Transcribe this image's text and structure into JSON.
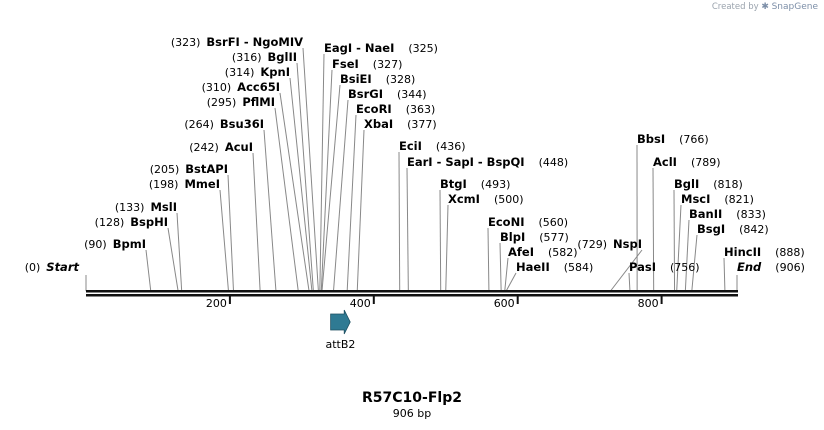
{
  "credit": {
    "prefix": "Created by",
    "brand": "SnapGene"
  },
  "construct": {
    "name": "R57C10-Flp2",
    "length_label": "906 bp",
    "length": 906
  },
  "ends": {
    "start": {
      "name": "Start",
      "pos": "(0)"
    },
    "end": {
      "name": "End",
      "pos": "(906)"
    }
  },
  "ticks": [
    "200",
    "400",
    "600",
    "800"
  ],
  "tick_values": [
    200,
    400,
    600,
    800
  ],
  "feature": {
    "name": "attB2",
    "start": 340,
    "end": 370,
    "color": "#2f7a93"
  },
  "sites": [
    {
      "name": "BsrFI - NgoMIV",
      "pos": "(323)",
      "bp": 323
    },
    {
      "name": "BglII",
      "pos": "(316)",
      "bp": 316
    },
    {
      "name": "KpnI",
      "pos": "(314)",
      "bp": 314
    },
    {
      "name": "Acc65I",
      "pos": "(310)",
      "bp": 310
    },
    {
      "name": "PflMI",
      "pos": "(295)",
      "bp": 295
    },
    {
      "name": "Bsu36I",
      "pos": "(264)",
      "bp": 264
    },
    {
      "name": "AcuI",
      "pos": "(242)",
      "bp": 242
    },
    {
      "name": "BstAPI",
      "pos": "(205)",
      "bp": 205
    },
    {
      "name": "MmeI",
      "pos": "(198)",
      "bp": 198
    },
    {
      "name": "MslI",
      "pos": "(133)",
      "bp": 133
    },
    {
      "name": "BspHI",
      "pos": "(128)",
      "bp": 128
    },
    {
      "name": "BpmI",
      "pos": "(90)",
      "bp": 90
    },
    {
      "name": "EagI - NaeI",
      "pos": "(325)",
      "bp": 325
    },
    {
      "name": "FseI",
      "pos": "(327)",
      "bp": 327
    },
    {
      "name": "BsiEI",
      "pos": "(328)",
      "bp": 328
    },
    {
      "name": "BsrGI",
      "pos": "(344)",
      "bp": 344
    },
    {
      "name": "EcoRI",
      "pos": "(363)",
      "bp": 363
    },
    {
      "name": "XbaI",
      "pos": "(377)",
      "bp": 377
    },
    {
      "name": "EciI",
      "pos": "(436)",
      "bp": 436
    },
    {
      "name": "EarI - SapI - BspQI",
      "pos": "(448)",
      "bp": 448
    },
    {
      "name": "BtgI",
      "pos": "(493)",
      "bp": 493
    },
    {
      "name": "XcmI",
      "pos": "(500)",
      "bp": 500
    },
    {
      "name": "EcoNI",
      "pos": "(560)",
      "bp": 560
    },
    {
      "name": "BlpI",
      "pos": "(577)",
      "bp": 577
    },
    {
      "name": "AfeI",
      "pos": "(582)",
      "bp": 582
    },
    {
      "name": "HaeII",
      "pos": "(584)",
      "bp": 584
    },
    {
      "name": "BbsI",
      "pos": "(766)",
      "bp": 766
    },
    {
      "name": "AclI",
      "pos": "(789)",
      "bp": 789
    },
    {
      "name": "BglI",
      "pos": "(818)",
      "bp": 818
    },
    {
      "name": "MscI",
      "pos": "(821)",
      "bp": 821
    },
    {
      "name": "BanII",
      "pos": "(833)",
      "bp": 833
    },
    {
      "name": "BsgI",
      "pos": "(842)",
      "bp": 842
    },
    {
      "name": "NspI",
      "pos": "(729)",
      "bp": 729
    },
    {
      "name": "PasI",
      "pos": "(756)",
      "bp": 756
    },
    {
      "name": "HincII",
      "pos": "(888)",
      "bp": 888
    }
  ]
}
